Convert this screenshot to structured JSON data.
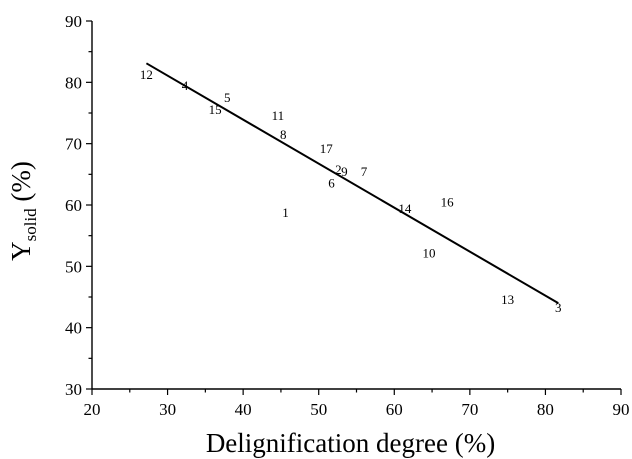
{
  "chart_data": {
    "type": "scatter",
    "xlabel": "Delignification degree (%)",
    "ylabel": {
      "main": "Y",
      "sub": "solid",
      "rest": " (%)"
    },
    "xlim": [
      20,
      90
    ],
    "ylim": [
      30,
      90
    ],
    "x_ticks": [
      20,
      30,
      40,
      50,
      60,
      70,
      80,
      90
    ],
    "y_ticks": [
      30,
      40,
      50,
      60,
      70,
      80,
      90
    ],
    "grid": false,
    "points": [
      {
        "label": "1",
        "x": 45.6,
        "y": 58.8
      },
      {
        "label": "2",
        "x": 52.6,
        "y": 65.8
      },
      {
        "label": "3",
        "x": 81.7,
        "y": 43.3
      },
      {
        "label": "4",
        "x": 32.3,
        "y": 79.5
      },
      {
        "label": "5",
        "x": 37.9,
        "y": 77.5
      },
      {
        "label": "6",
        "x": 51.7,
        "y": 63.6
      },
      {
        "label": "7",
        "x": 56.0,
        "y": 65.5
      },
      {
        "label": "8",
        "x": 45.3,
        "y": 71.5
      },
      {
        "label": "9",
        "x": 53.4,
        "y": 65.5
      },
      {
        "label": "10",
        "x": 64.6,
        "y": 52.2
      },
      {
        "label": "11",
        "x": 44.6,
        "y": 74.6
      },
      {
        "label": "12",
        "x": 27.2,
        "y": 81.3
      },
      {
        "label": "13",
        "x": 75.0,
        "y": 44.6
      },
      {
        "label": "14",
        "x": 61.4,
        "y": 59.4
      },
      {
        "label": "15",
        "x": 36.3,
        "y": 75.6
      },
      {
        "label": "16",
        "x": 67.0,
        "y": 60.5
      },
      {
        "label": "17",
        "x": 51.0,
        "y": 69.2
      }
    ],
    "fit_line": {
      "x": [
        27.2,
        81.7
      ],
      "y": [
        83.1,
        44.0
      ]
    }
  }
}
